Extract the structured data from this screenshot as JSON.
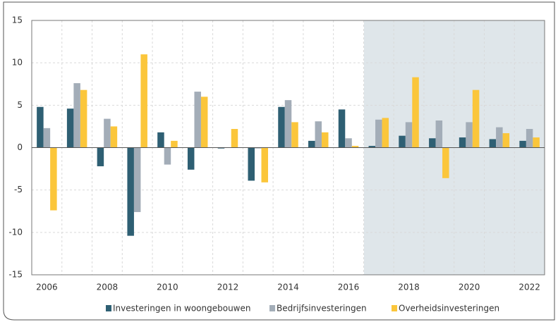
{
  "chart_data": {
    "type": "bar",
    "categories": [
      "2006",
      null,
      "2008",
      null,
      "2010",
      null,
      "2012",
      null,
      "2014",
      null,
      "2016",
      null,
      "2018",
      null,
      "2020",
      null,
      "2022"
    ],
    "series": [
      {
        "name": "Investeringen in woongebouwen",
        "color": "#2e5f73",
        "values": [
          4.8,
          4.6,
          -2.2,
          -10.4,
          1.8,
          -2.6,
          -0.1,
          -3.9,
          4.8,
          0.8,
          4.5,
          0.2,
          1.4,
          1.1,
          1.2,
          1.0,
          0.8
        ]
      },
      {
        "name": "Bedrijfsinvesteringen",
        "color": "#a3adb8",
        "values": [
          2.3,
          7.6,
          3.4,
          -7.6,
          -2.0,
          6.6,
          0,
          -0.1,
          5.6,
          3.1,
          1.1,
          3.3,
          3.0,
          3.2,
          3.0,
          2.4,
          2.2
        ]
      },
      {
        "name": "Overheidsinvesteringen",
        "color": "#fbc63b",
        "values": [
          -7.4,
          6.8,
          2.5,
          11.0,
          0.8,
          6.0,
          2.2,
          -4.1,
          3.0,
          1.8,
          0.2,
          3.5,
          8.3,
          -3.6,
          6.8,
          1.7,
          1.2
        ]
      }
    ],
    "ylim": [
      -15,
      15
    ],
    "yticks": [
      -15,
      -10,
      -5,
      0,
      5,
      10,
      15
    ],
    "grid": true,
    "legend": "bottom"
  }
}
